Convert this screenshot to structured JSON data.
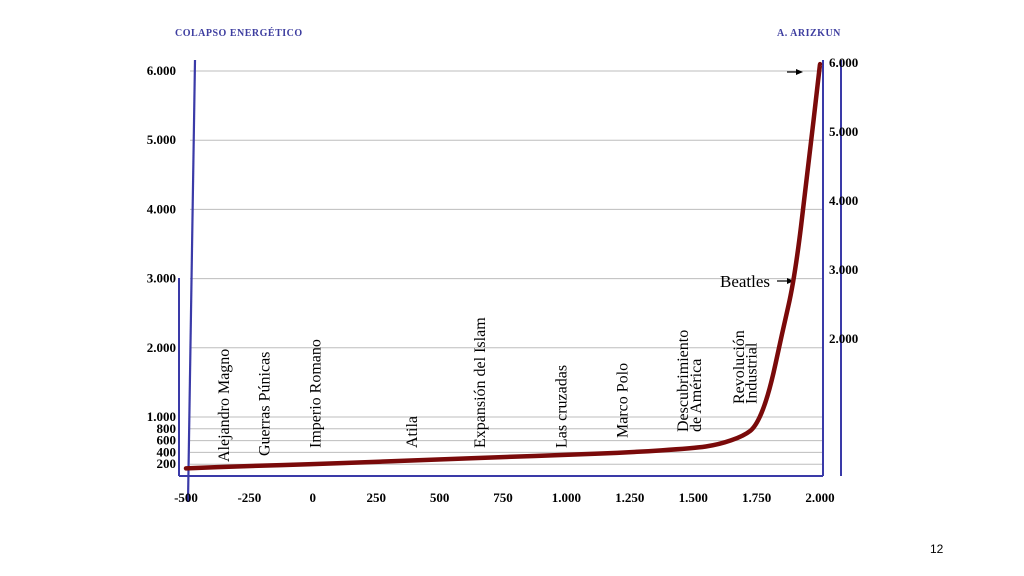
{
  "header": {
    "left": "COLAPSO ENERGÉTICO",
    "right": "A. ARIZKUN"
  },
  "page_number": "12",
  "colors": {
    "curve": "#7a0a0a",
    "axis": "#3a3aa8",
    "grid": "#bdbdbd"
  },
  "chart_data": {
    "type": "line",
    "title": "",
    "xlabel": "",
    "ylabel": "",
    "xlim": [
      -500,
      2000
    ],
    "ylim": [
      0,
      6000
    ],
    "x_ticks": [
      "-500",
      "-250",
      "0",
      "250",
      "500",
      "750",
      "1.000",
      "1.250",
      "1.500",
      "1.750",
      "2.000"
    ],
    "y_ticks_left": [
      "200",
      "400",
      "600",
      "800",
      "1.000",
      "2.000",
      "3.000",
      "4.000",
      "5.000",
      "6.000"
    ],
    "y_ticks_right": [
      "2.000",
      "3.000",
      "4.000",
      "5.000",
      "6.000"
    ],
    "series": [
      {
        "x": [
          -500,
          -250,
          0,
          250,
          500,
          750,
          1000,
          1250,
          1500,
          1600,
          1700,
          1750,
          1800,
          1850,
          1900,
          1950,
          2000
        ],
        "y": [
          130,
          170,
          200,
          240,
          280,
          320,
          360,
          400,
          470,
          530,
          680,
          850,
          1350,
          2200,
          3000,
          4500,
          6100
        ]
      }
    ],
    "annotations": [
      {
        "text": "Alejandro Magno",
        "x": -330
      },
      {
        "text": "Guerras Púnicas",
        "x": -170
      },
      {
        "text": "Imperio Romano",
        "x": 30
      },
      {
        "text": "Atila",
        "x": 410
      },
      {
        "text": "Expansión del Islam",
        "x": 680
      },
      {
        "text": "Las cruzadas",
        "x": 1000
      },
      {
        "text": "Marco Polo",
        "x": 1240
      },
      {
        "text": "Descubrimiento",
        "x": 1480
      },
      {
        "text": "de América",
        "x": 1530
      },
      {
        "text": "Revolución",
        "x": 1700
      },
      {
        "text": "Industrial",
        "x": 1750
      },
      {
        "text": "Beatles",
        "x": 1950,
        "y": 2850
      }
    ]
  }
}
